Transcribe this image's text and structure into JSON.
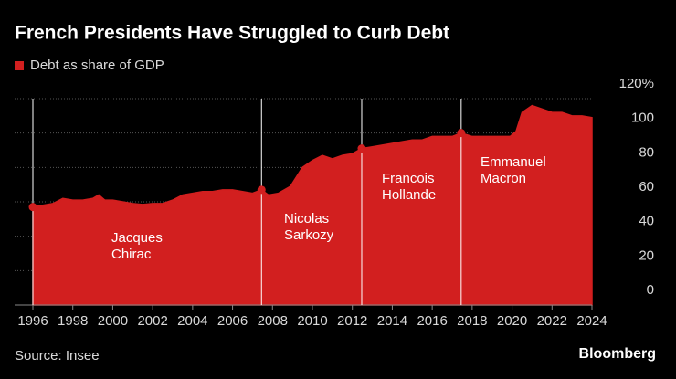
{
  "chart_data": {
    "type": "area",
    "title": "French Presidents Have Struggled to Curb Debt",
    "source": "Source: Insee",
    "brand": "Bloomberg",
    "x": [
      1996,
      1996.5,
      1997,
      1997.5,
      1998,
      1998.5,
      1999,
      1999.3,
      1999.6,
      2000,
      2000.5,
      2001,
      2001.5,
      2002,
      2002.5,
      2003,
      2003.5,
      2004,
      2004.5,
      2005,
      2005.5,
      2006,
      2006.5,
      2007,
      2007.45,
      2007.8,
      2008.3,
      2008.9,
      2009.5,
      2010,
      2010.5,
      2011,
      2011.5,
      2012,
      2012.47,
      2013,
      2013.5,
      2014,
      2014.5,
      2015,
      2015.5,
      2016,
      2016.5,
      2017,
      2017.45,
      2018,
      2018.5,
      2019,
      2019.9,
      2020.2,
      2020.5,
      2021,
      2021.5,
      2022,
      2022.5,
      2023,
      2023.5,
      2024
    ],
    "series": [
      {
        "name": "Debt as share of GDP",
        "color": "#d21f1f",
        "values": [
          57,
          58,
          59,
          62,
          61,
          61,
          62,
          64,
          61,
          61,
          60,
          59,
          58.5,
          59,
          59,
          61,
          64,
          65,
          66,
          66,
          67,
          67,
          66,
          65,
          67,
          64,
          65,
          69,
          80,
          84,
          87,
          85,
          87,
          88,
          91,
          92,
          93,
          94,
          95,
          96,
          96,
          98,
          98,
          98,
          100,
          98,
          98,
          98,
          98,
          101,
          112,
          116,
          114,
          112,
          112,
          110,
          110,
          109
        ]
      }
    ],
    "annotations": [
      {
        "lines": [
          "Jacques",
          "Chirac"
        ],
        "x": 1996,
        "y": 57
      },
      {
        "lines": [
          "Nicolas",
          "Sarkozy"
        ],
        "x": 2007.45,
        "y": 67
      },
      {
        "lines": [
          "Francois",
          "Hollande"
        ],
        "x": 2012.47,
        "y": 91
      },
      {
        "lines": [
          "Emmanuel",
          "Macron"
        ],
        "x": 2017.45,
        "y": 100
      }
    ],
    "xlim": [
      1996,
      2024
    ],
    "xticks": [
      1996,
      1998,
      2000,
      2002,
      2004,
      2006,
      2008,
      2010,
      2012,
      2014,
      2016,
      2018,
      2020,
      2022,
      2024
    ],
    "ylim": [
      0,
      120
    ],
    "yticks": [
      0,
      20,
      40,
      60,
      80,
      100,
      {
        "value": 120,
        "label": "120%"
      }
    ],
    "grid": true
  }
}
